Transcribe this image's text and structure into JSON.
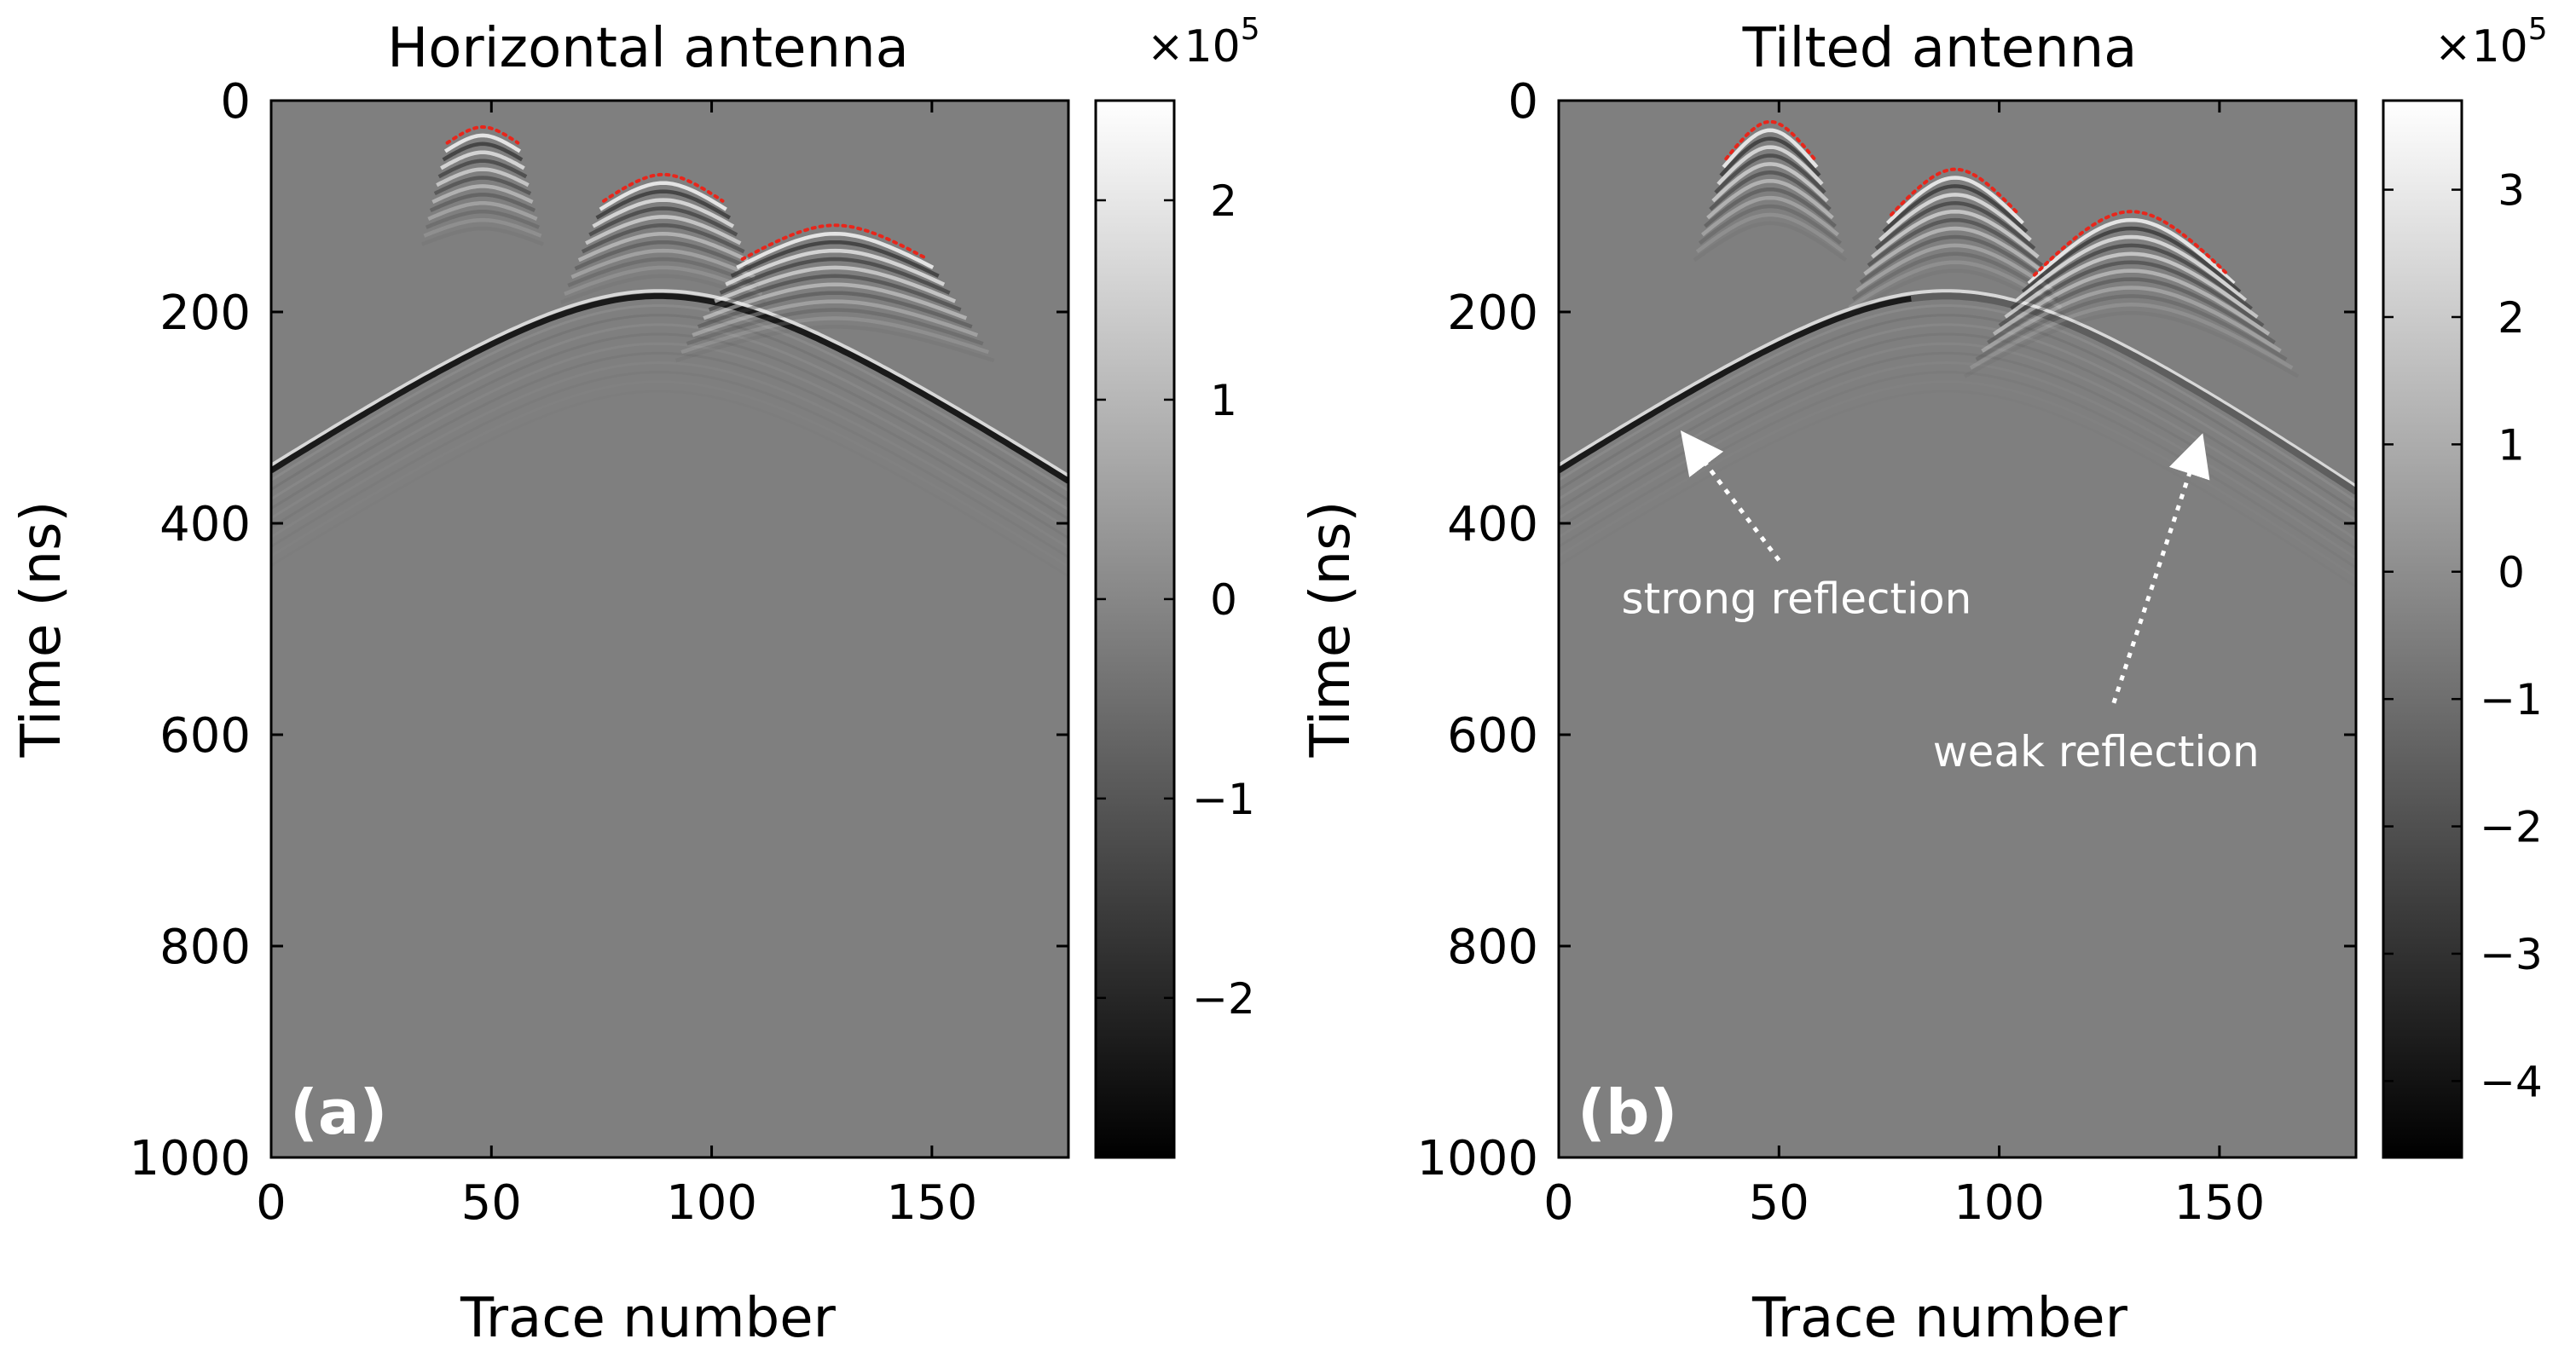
{
  "chart_data": [
    {
      "type": "heatmap",
      "id": "a",
      "title": "Horizontal antenna",
      "panel_label": "(a)",
      "xlabel": "Trace number",
      "ylabel": "Time (ns)",
      "xlim": [
        0,
        181
      ],
      "ylim": [
        0,
        1000
      ],
      "y_reversed": true,
      "xticks": [
        0,
        50,
        100,
        150
      ],
      "yticks": [
        0,
        200,
        400,
        600,
        800,
        1000
      ],
      "colorbar": {
        "colormap": "gray",
        "range": [
          -2.8,
          2.5
        ],
        "ticks": [
          -2,
          -1,
          0,
          1,
          2
        ],
        "tick_labels": [
          "−2",
          "−1",
          "0",
          "1",
          "2"
        ],
        "exponent_label": "×10",
        "exponent": "5"
      },
      "reflector": {
        "apex_trace": 88,
        "apex_time": 185,
        "left_end_time": 350,
        "right_end_time": 360,
        "strong_side": "both"
      },
      "hyperbolas": [
        {
          "apex_trace": 48,
          "apex_time": 25,
          "edge_time": 40,
          "x_from": 40,
          "x_to": 56
        },
        {
          "apex_trace": 89,
          "apex_time": 70,
          "edge_time": 95,
          "x_from": 75,
          "x_to": 102
        },
        {
          "apex_trace": 128,
          "apex_time": 118,
          "edge_time": 150,
          "x_from": 106,
          "x_to": 148
        }
      ],
      "annotations": []
    },
    {
      "type": "heatmap",
      "id": "b",
      "title": "Tilted antenna",
      "panel_label": "(b)",
      "xlabel": "Trace number",
      "ylabel": "Time (ns)",
      "xlim": [
        0,
        181
      ],
      "ylim": [
        0,
        1000
      ],
      "y_reversed": true,
      "xticks": [
        0,
        50,
        100,
        150
      ],
      "yticks": [
        0,
        200,
        400,
        600,
        800,
        1000
      ],
      "colorbar": {
        "colormap": "gray",
        "range": [
          -4.6,
          3.7
        ],
        "ticks": [
          -4,
          -3,
          -2,
          -1,
          0,
          1,
          2,
          3
        ],
        "tick_labels": [
          "−4",
          "−3",
          "−2",
          "−1",
          "0",
          "1",
          "2",
          "3"
        ],
        "exponent_label": "×10",
        "exponent": "5"
      },
      "reflector": {
        "apex_trace": 88,
        "apex_time": 185,
        "left_end_time": 350,
        "right_end_time": 370,
        "strong_side": "left"
      },
      "hyperbolas": [
        {
          "apex_trace": 48,
          "apex_time": 20,
          "edge_time": 55,
          "x_from": 34,
          "x_to": 54
        },
        {
          "apex_trace": 90,
          "apex_time": 65,
          "edge_time": 108,
          "x_from": 68,
          "x_to": 97
        },
        {
          "apex_trace": 130,
          "apex_time": 105,
          "edge_time": 165,
          "x_from": 98,
          "x_to": 142
        }
      ],
      "annotations": [
        {
          "text": "strong reflection",
          "label_trace": 54,
          "label_time": 485,
          "arrow_from": [
            50,
            435
          ],
          "arrow_to": [
            30,
            325
          ]
        },
        {
          "text": "weak reflection",
          "label_trace": 122,
          "label_time": 630,
          "arrow_from": [
            126,
            570
          ],
          "arrow_to": [
            145,
            330
          ]
        }
      ]
    }
  ]
}
